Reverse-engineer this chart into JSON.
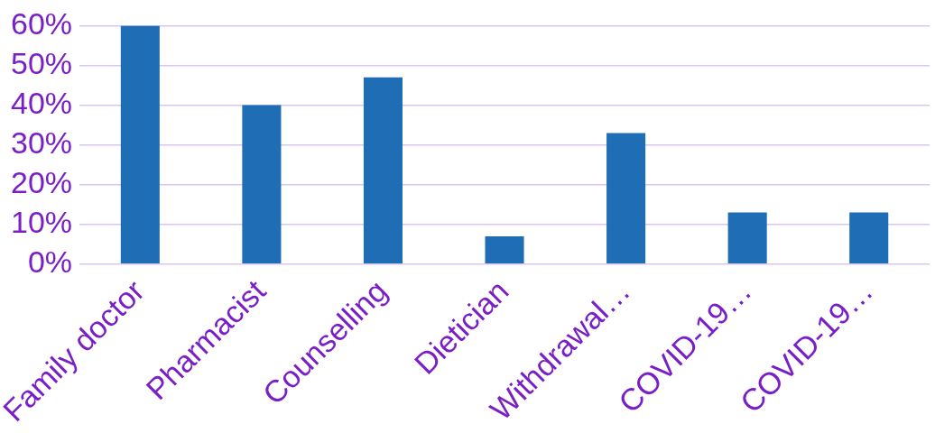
{
  "chart_data": {
    "type": "bar",
    "categories": [
      "Family doctor",
      "Pharmacist",
      "Counselling",
      "Dietician",
      "Withdrawal…",
      "COVID-19…",
      "COVID-19…"
    ],
    "values": [
      60,
      40,
      47,
      7,
      33,
      13,
      13
    ],
    "color": "#1f6eb5",
    "ylim": [
      0,
      60
    ],
    "yticks": [
      {
        "value": 0,
        "label": "0%"
      },
      {
        "value": 10,
        "label": "10%"
      },
      {
        "value": 20,
        "label": "20%"
      },
      {
        "value": 30,
        "label": "30%"
      },
      {
        "value": 40,
        "label": "40%"
      },
      {
        "value": 50,
        "label": "50%"
      },
      {
        "value": 60,
        "label": "60%"
      }
    ],
    "grid": "y",
    "legend": false
  }
}
